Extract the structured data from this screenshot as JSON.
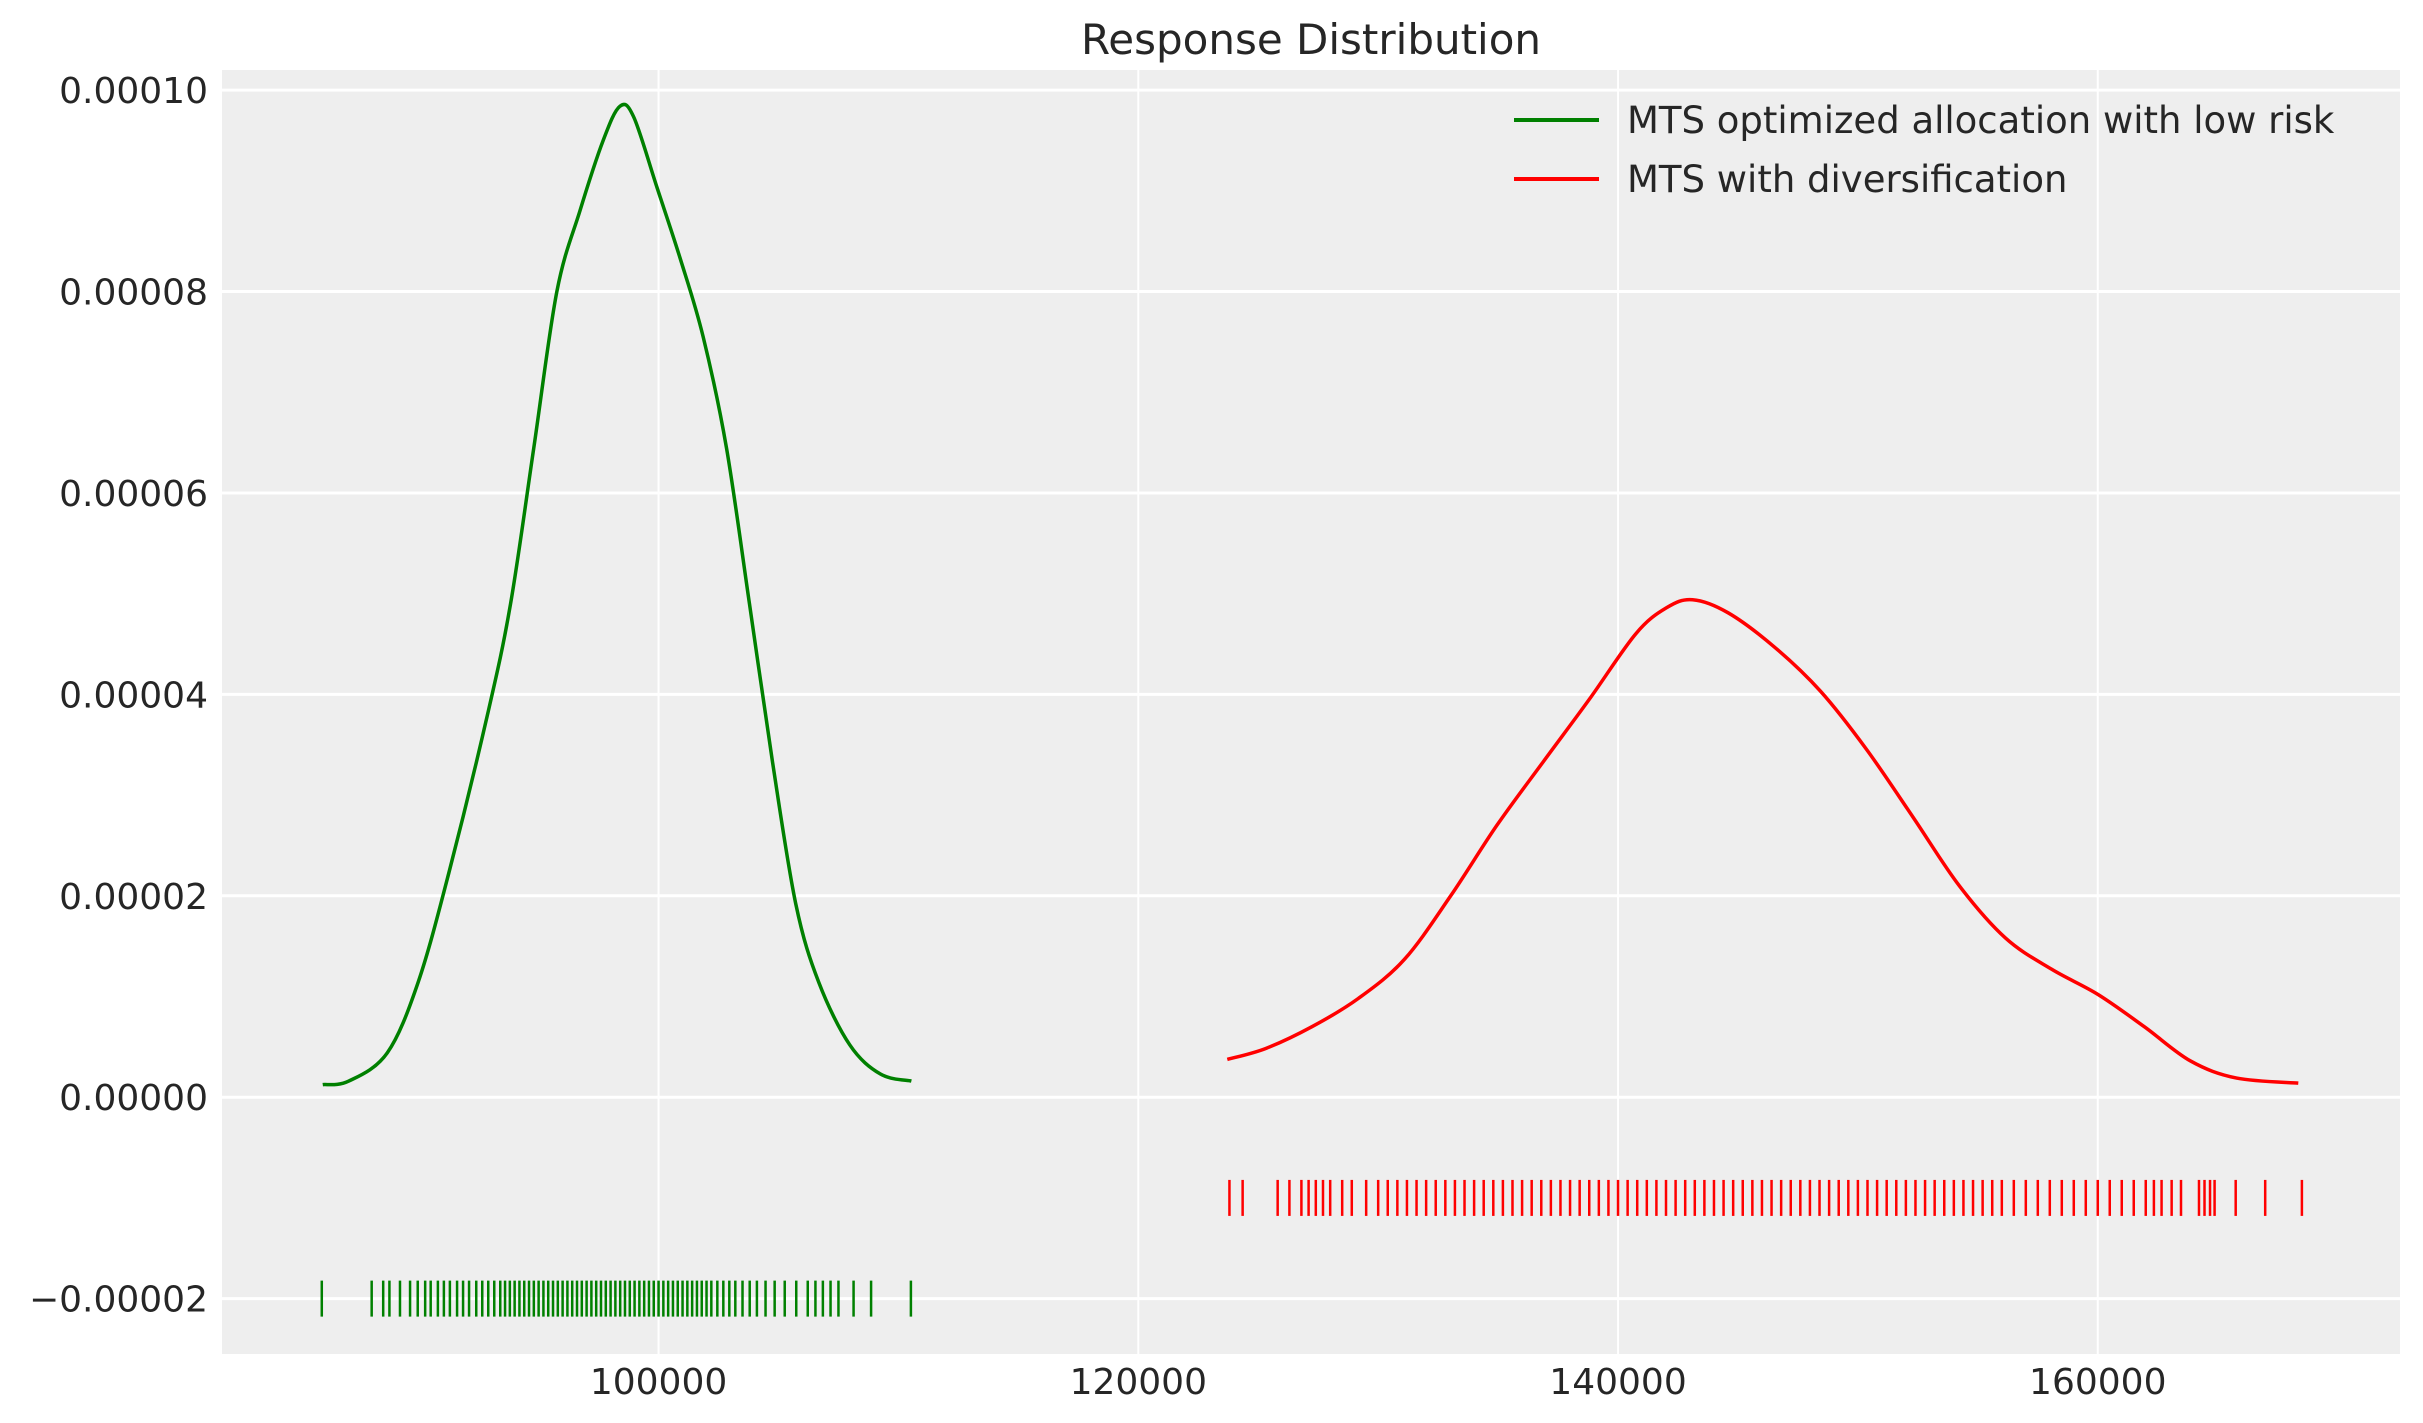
{
  "chart_data": {
    "type": "line",
    "title": "Response Distribution",
    "xlabel": "",
    "ylabel": "",
    "xlim": [
      81800,
      172600
    ],
    "ylim": [
      -2.55e-05,
      0.000102
    ],
    "grid": true,
    "background": "#eeeeee",
    "legend_placement": "top-right",
    "x_ticks": [
      100000,
      120000,
      140000,
      160000
    ],
    "x_tick_labels": [
      "100000",
      "120000",
      "140000",
      "160000"
    ],
    "y_ticks": [
      -2e-05,
      0,
      2e-05,
      4e-05,
      6e-05,
      8e-05,
      0.0001
    ],
    "y_tick_labels": [
      "−0.00002",
      "0.00000",
      "0.00002",
      "0.00004",
      "0.00006",
      "0.00008",
      "0.00010"
    ],
    "series": [
      {
        "name": "MTS optimized allocation with low risk",
        "color": "#008000",
        "rug_level": -2e-05,
        "x": [
          86000,
          87085,
          88690,
          89975,
          91260,
          92870,
          93830,
          94800,
          95760,
          96720,
          97690,
          98390,
          98970,
          99940,
          100900,
          101860,
          102830,
          103790,
          104750,
          105720,
          106680,
          107970,
          109250,
          110540
        ],
        "y": [
          1.25e-06,
          1.6e-06,
          4.4e-06,
          1.14e-05,
          2.23e-05,
          3.8e-05,
          4.9e-05,
          6.45e-05,
          8e-05,
          8.8e-05,
          9.5e-05,
          9.84e-05,
          9.73e-05,
          9.03e-05,
          8.33e-05,
          7.55e-05,
          6.45e-05,
          4.9e-05,
          3.33e-05,
          1.92e-05,
          1.14e-05,
          5.2e-06,
          2.3e-06,
          1.6e-06
        ],
        "rug": [
          85960,
          88040,
          88520,
          88780,
          89220,
          89640,
          89960,
          90270,
          90500,
          90800,
          91050,
          91300,
          91600,
          91850,
          92100,
          92400,
          92650,
          92900,
          93150,
          93400,
          93600,
          93800,
          94000,
          94200,
          94400,
          94600,
          94800,
          95000,
          95200,
          95400,
          95600,
          95800,
          96000,
          96200,
          96400,
          96600,
          96800,
          97000,
          97200,
          97400,
          97600,
          97800,
          98000,
          98200,
          98400,
          98600,
          98800,
          99000,
          99200,
          99400,
          99600,
          99800,
          100000,
          100200,
          100400,
          100600,
          100800,
          101000,
          101200,
          101400,
          101600,
          101800,
          102000,
          102200,
          102450,
          102700,
          102950,
          103200,
          103500,
          103800,
          104100,
          104460,
          104840,
          105260,
          105740,
          106220,
          106540,
          106850,
          107170,
          107500,
          108130,
          108860,
          110520
        ]
      },
      {
        "name": "MTS with diversification",
        "color": "#ff0000",
        "rug_level": -1e-05,
        "x": [
          123710,
          125315,
          127240,
          129170,
          131100,
          133025,
          134950,
          136880,
          138800,
          140735,
          142020,
          143110,
          144590,
          146520,
          148445,
          150370,
          152300,
          154225,
          156155,
          158080,
          160010,
          161940,
          163865,
          165790,
          168360
        ],
        "y": [
          3.75e-06,
          4.84e-06,
          7e-06,
          9.8e-06,
          1.37e-05,
          2e-05,
          2.7e-05,
          3.33e-05,
          3.95e-05,
          4.6e-05,
          4.86e-05,
          4.94e-05,
          4.81e-05,
          4.47e-05,
          4.03e-05,
          3.45e-05,
          2.78e-05,
          2.1e-05,
          1.58e-05,
          1.27e-05,
          1.02e-05,
          7e-06,
          3.6e-06,
          1.9e-06,
          1.4e-06
        ],
        "rug": [
          123800,
          124350,
          125810,
          126300,
          126800,
          127100,
          127400,
          127700,
          128000,
          128500,
          128900,
          129500,
          130000,
          130400,
          130800,
          131200,
          131600,
          132000,
          132400,
          132800,
          133200,
          133600,
          134000,
          134400,
          134800,
          135200,
          135600,
          136000,
          136400,
          136800,
          137200,
          137600,
          138000,
          138400,
          138800,
          139200,
          139600,
          140000,
          140400,
          140800,
          141200,
          141600,
          142000,
          142400,
          142800,
          143200,
          143600,
          144000,
          144400,
          144800,
          145200,
          145600,
          146000,
          146400,
          146800,
          147200,
          147600,
          148000,
          148400,
          148800,
          149200,
          149600,
          150000,
          150400,
          150800,
          151200,
          151600,
          152000,
          152400,
          152800,
          153200,
          153600,
          154000,
          154400,
          154800,
          155200,
          155600,
          156000,
          156500,
          157000,
          157500,
          158000,
          158500,
          159000,
          159500,
          160000,
          160500,
          161000,
          161500,
          162000,
          162340,
          162660,
          163080,
          163470,
          164220,
          164450,
          164680,
          164870,
          165750,
          166980,
          168510
        ]
      }
    ]
  }
}
